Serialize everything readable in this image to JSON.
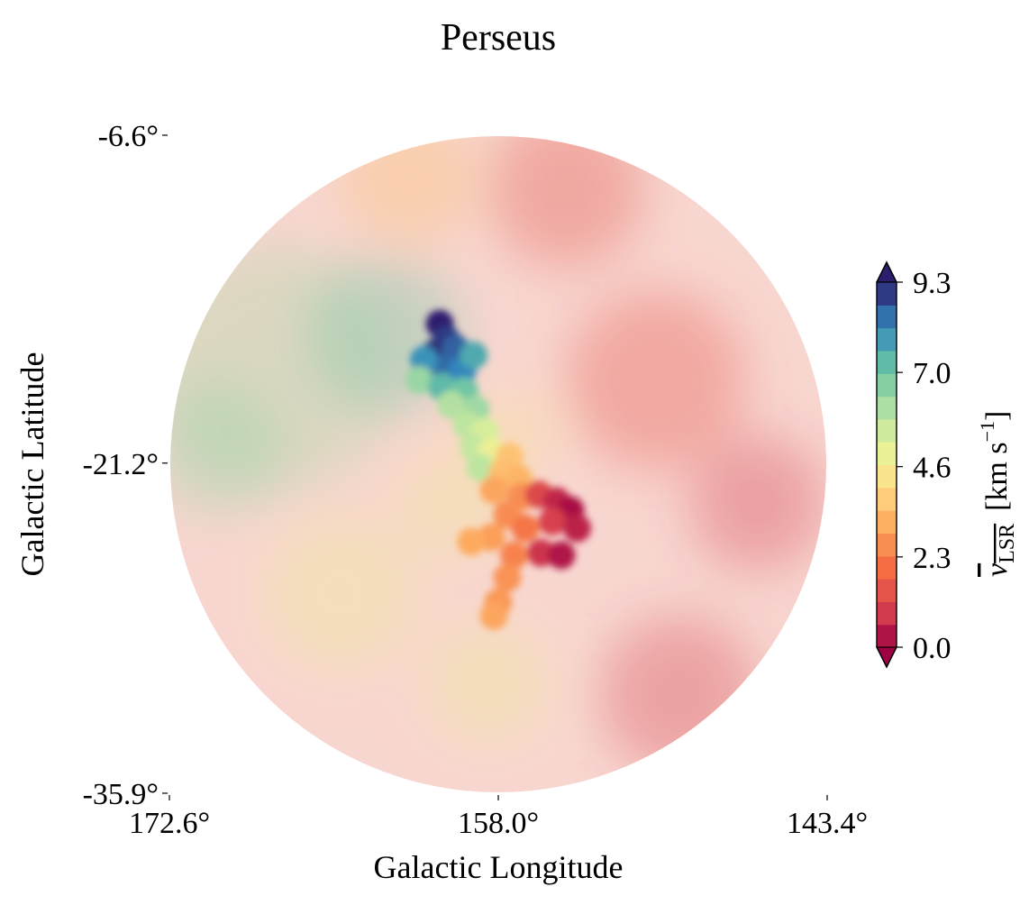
{
  "chart_data": {
    "type": "heatmap",
    "title": "Perseus",
    "xlabel": "Galactic Longitude",
    "ylabel": "Galactic Latitude",
    "x_ticks": [
      {
        "value": 172.6,
        "label": "172.6°"
      },
      {
        "value": 158.0,
        "label": "158.0°"
      },
      {
        "value": 143.4,
        "label": "143.4°"
      }
    ],
    "y_ticks": [
      {
        "value": -6.6,
        "label": "-6.6°"
      },
      {
        "value": -21.2,
        "label": "-21.2°"
      },
      {
        "value": -35.9,
        "label": "-35.9°"
      }
    ],
    "xlim": [
      172.6,
      143.4
    ],
    "ylim": [
      -35.9,
      -6.6
    ],
    "field_shape": "circle",
    "colormap": "Spectral",
    "colorbar": {
      "label_main": "v",
      "label_sub": "LSR",
      "label_unit": "[km s",
      "label_exp": "−1",
      "label_close": "]",
      "ticks": [
        {
          "value": 0.0,
          "label": "0.0"
        },
        {
          "value": 2.3,
          "label": "2.3"
        },
        {
          "value": 4.6,
          "label": "4.6"
        },
        {
          "value": 7.0,
          "label": "7.0"
        },
        {
          "value": 9.3,
          "label": "9.3"
        }
      ],
      "min": 0.0,
      "max": 9.3,
      "extend": "both",
      "levels": 16
    },
    "background_field": {
      "opacity": 0.35,
      "regions": [
        {
          "l": 168.0,
          "b": -17.0,
          "r": 5.5,
          "v": 6.2
        },
        {
          "l": 170.5,
          "b": -20.5,
          "r": 3.0,
          "v": 6.5
        },
        {
          "l": 163.0,
          "b": -15.5,
          "r": 3.5,
          "v": 7.0
        },
        {
          "l": 165.0,
          "b": -27.0,
          "r": 3.5,
          "v": 4.8
        },
        {
          "l": 158.5,
          "b": -31.0,
          "r": 2.8,
          "v": 4.8
        },
        {
          "l": 160.0,
          "b": -23.0,
          "r": 2.5,
          "v": 4.7
        },
        {
          "l": 151.0,
          "b": -17.5,
          "r": 4.0,
          "v": 1.5
        },
        {
          "l": 146.5,
          "b": -23.0,
          "r": 3.0,
          "v": 0.9
        },
        {
          "l": 150.0,
          "b": -31.5,
          "r": 3.5,
          "v": 1.0
        },
        {
          "l": 155.0,
          "b": -9.0,
          "r": 3.5,
          "v": 1.4
        },
        {
          "l": 162.0,
          "b": -8.5,
          "r": 3.0,
          "v": 3.5
        },
        {
          "l": 157.5,
          "b": -20.0,
          "r": 2.0,
          "v": 4.4
        }
      ]
    },
    "cloud": [
      {
        "l": 160.6,
        "b": -15.0,
        "v": 9.3
      },
      {
        "l": 160.3,
        "b": -15.7,
        "v": 9.0
      },
      {
        "l": 160.8,
        "b": -16.3,
        "v": 9.1
      },
      {
        "l": 159.9,
        "b": -16.1,
        "v": 8.6
      },
      {
        "l": 160.4,
        "b": -17.0,
        "v": 8.5
      },
      {
        "l": 161.3,
        "b": -16.6,
        "v": 8.0
      },
      {
        "l": 159.6,
        "b": -17.1,
        "v": 8.2
      },
      {
        "l": 159.1,
        "b": -16.4,
        "v": 7.6
      },
      {
        "l": 161.5,
        "b": -17.5,
        "v": 6.4
      },
      {
        "l": 160.5,
        "b": -17.8,
        "v": 7.3
      },
      {
        "l": 159.5,
        "b": -18.0,
        "v": 7.0
      },
      {
        "l": 159.0,
        "b": -18.8,
        "v": 6.3
      },
      {
        "l": 160.1,
        "b": -18.6,
        "v": 6.0
      },
      {
        "l": 159.4,
        "b": -19.5,
        "v": 5.8
      },
      {
        "l": 158.6,
        "b": -19.8,
        "v": 5.4
      },
      {
        "l": 159.1,
        "b": -20.5,
        "v": 5.7
      },
      {
        "l": 158.3,
        "b": -20.7,
        "v": 4.9
      },
      {
        "l": 157.5,
        "b": -20.9,
        "v": 3.6
      },
      {
        "l": 158.8,
        "b": -21.4,
        "v": 5.8
      },
      {
        "l": 157.8,
        "b": -21.6,
        "v": 3.5
      },
      {
        "l": 157.1,
        "b": -21.9,
        "v": 3.3
      },
      {
        "l": 158.2,
        "b": -22.4,
        "v": 3.0
      },
      {
        "l": 157.0,
        "b": -22.7,
        "v": 2.6
      },
      {
        "l": 156.2,
        "b": -22.6,
        "v": 1.2
      },
      {
        "l": 155.4,
        "b": -22.9,
        "v": 0.6
      },
      {
        "l": 154.8,
        "b": -23.3,
        "v": 0.2
      },
      {
        "l": 155.6,
        "b": -23.8,
        "v": 1.0
      },
      {
        "l": 154.5,
        "b": -24.1,
        "v": 0.5
      },
      {
        "l": 157.6,
        "b": -23.5,
        "v": 2.6
      },
      {
        "l": 156.8,
        "b": -24.1,
        "v": 2.2
      },
      {
        "l": 158.3,
        "b": -24.5,
        "v": 2.9
      },
      {
        "l": 159.2,
        "b": -24.7,
        "v": 3.1
      },
      {
        "l": 157.3,
        "b": -25.3,
        "v": 2.4
      },
      {
        "l": 156.1,
        "b": -25.2,
        "v": 0.8
      },
      {
        "l": 155.2,
        "b": -25.3,
        "v": 0.3
      },
      {
        "l": 157.6,
        "b": -26.3,
        "v": 2.7
      },
      {
        "l": 158.0,
        "b": -27.4,
        "v": 2.8
      },
      {
        "l": 158.2,
        "b": -28.0,
        "v": 3.0
      }
    ]
  }
}
